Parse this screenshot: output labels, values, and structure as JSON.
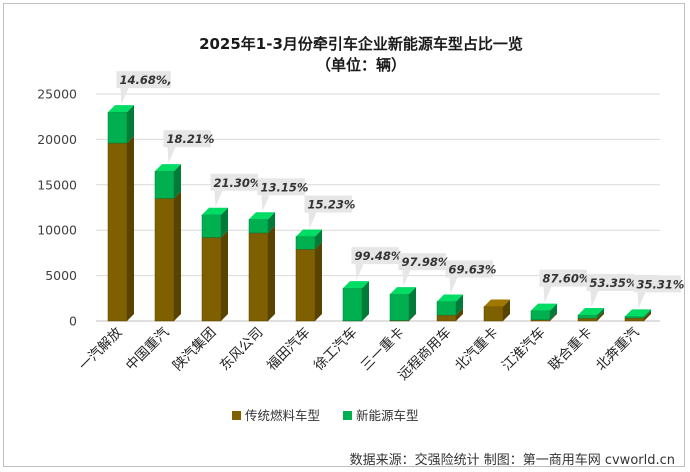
{
  "chart_data": {
    "type": "bar",
    "stacked": true,
    "title": "2025年1-3月份牵引车企业新能源车型占比一览",
    "subtitle": "（单位：辆）",
    "categories": [
      "一汽解放",
      "中国重汽",
      "陕汽集团",
      "东风公司",
      "福田汽车",
      "徐工汽车",
      "三一重卡",
      "远程商用车",
      "北汽重卡",
      "江淮汽车",
      "联合重卡",
      "北奔重汽"
    ],
    "series": [
      {
        "name": "传统燃料车型",
        "color": "#7f6000",
        "values": [
          19600,
          13500,
          9200,
          9700,
          7900,
          20,
          60,
          650,
          1600,
          140,
          310,
          330
        ]
      },
      {
        "name": "新能源车型",
        "color": "#00b050",
        "values": [
          3400,
          3000,
          2500,
          1500,
          1400,
          3600,
          2900,
          1500,
          0,
          1000,
          350,
          180
        ]
      }
    ],
    "data_labels": [
      "14.68%,",
      "18.21%",
      "21.30%",
      "13.15%",
      "15.23%",
      "99.48%",
      "97.98%",
      "69.63%",
      "",
      "87.60%",
      "53.35%",
      "35.31%"
    ],
    "yticks": [
      "0",
      "5000",
      "10000",
      "15000",
      "20000",
      "25000"
    ],
    "ylim": [
      0,
      25000
    ],
    "grid": true,
    "legend_position": "bottom",
    "source": "数据来源：交强险统计   制图：第一商用车网 cvworld.cn"
  }
}
